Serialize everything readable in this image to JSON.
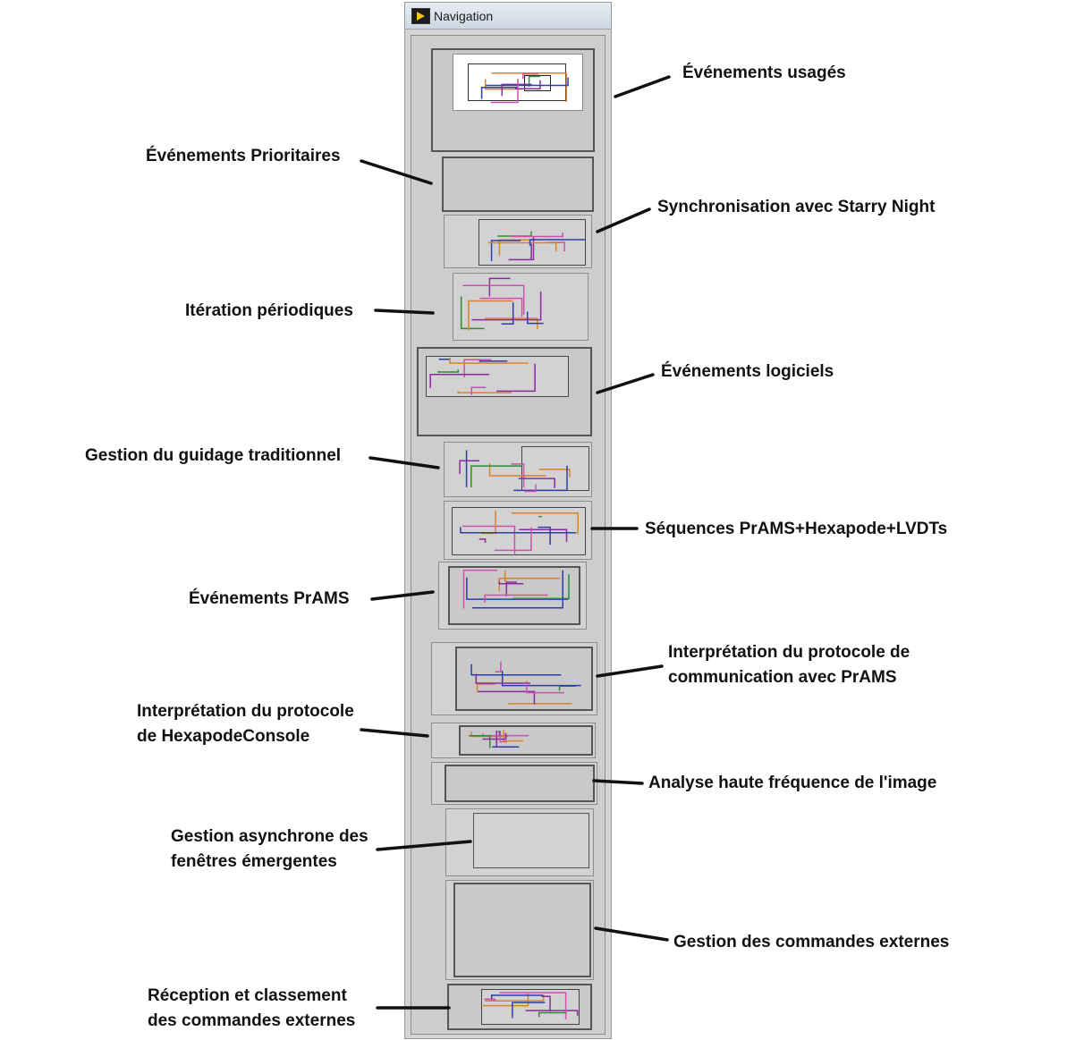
{
  "window": {
    "title": "Navigation"
  },
  "labels": {
    "evenements_usages": "Événements usagés",
    "evenements_prioritaires": "Événements Prioritaires",
    "synchronisation": "Synchronisation avec Starry Night",
    "iteration": "Itération périodiques",
    "evenements_logiciels": "Événements logiciels",
    "guidage": "Gestion du guidage traditionnel",
    "sequences": "Séquences PrAMS+Hexapode+LVDTs",
    "evenements_prams": "Événements PrAMS",
    "interp_prams_1": "Interprétation du protocole de",
    "interp_prams_2": "communication avec PrAMS",
    "interp_hexa_1": "Interprétation du protocole",
    "interp_hexa_2": "de HexapodeConsole",
    "analyse": "Analyse haute fréquence de l'image",
    "async_1": "Gestion asynchrone des",
    "async_2": "fenêtres émergentes",
    "commandes": "Gestion des commandes externes",
    "reception_1": "Réception et classement",
    "reception_2": "des commandes externes"
  },
  "colors": {
    "wire_orange": "#d9822b",
    "wire_blue": "#2b3fa8",
    "wire_purple": "#8b2a9e",
    "wire_pink": "#d14db0",
    "wire_green": "#2f8a3a",
    "annotation": "#111111"
  },
  "icons": {
    "app_icon": "labview-icon"
  }
}
